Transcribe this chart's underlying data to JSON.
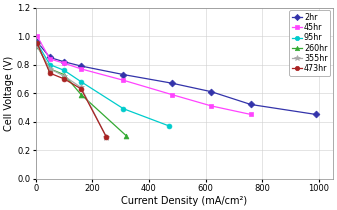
{
  "title": "",
  "xlabel": "Current Density (mA/cm²)",
  "ylabel": "Cell Voltage (V)",
  "xlim": [
    0,
    1050
  ],
  "ylim": [
    0,
    1.2
  ],
  "xticks": [
    0,
    200,
    400,
    600,
    800,
    1000
  ],
  "yticks": [
    0,
    0.2,
    0.4,
    0.6,
    0.8,
    1.0,
    1.2
  ],
  "series": [
    {
      "label": "2hr",
      "color": "#3333AA",
      "marker": "D",
      "markersize": 3.5,
      "linewidth": 0.9,
      "x": [
        5,
        50,
        100,
        160,
        310,
        480,
        620,
        760,
        990
      ],
      "y": [
        0.96,
        0.85,
        0.82,
        0.79,
        0.73,
        0.67,
        0.61,
        0.52,
        0.45
      ]
    },
    {
      "label": "45hr",
      "color": "#FF44FF",
      "marker": "s",
      "markersize": 3.5,
      "linewidth": 0.9,
      "x": [
        5,
        50,
        100,
        160,
        310,
        480,
        620,
        760
      ],
      "y": [
        1.0,
        0.84,
        0.81,
        0.77,
        0.69,
        0.59,
        0.51,
        0.45
      ]
    },
    {
      "label": "95hr",
      "color": "#00CCCC",
      "marker": "o",
      "markersize": 3.5,
      "linewidth": 0.9,
      "x": [
        5,
        50,
        100,
        160,
        310,
        470
      ],
      "y": [
        0.95,
        0.8,
        0.76,
        0.68,
        0.49,
        0.37
      ]
    },
    {
      "label": "260hr",
      "color": "#33AA33",
      "marker": "^",
      "markersize": 3.5,
      "linewidth": 0.9,
      "x": [
        5,
        50,
        100,
        160,
        320
      ],
      "y": [
        0.93,
        0.77,
        0.73,
        0.59,
        0.3
      ]
    },
    {
      "label": "355hr",
      "color": "#AAAAAA",
      "marker": "*",
      "markersize": 4.5,
      "linewidth": 0.9,
      "x": [
        5,
        50,
        100,
        160,
        250
      ],
      "y": [
        0.93,
        0.77,
        0.72,
        0.64,
        0.29
      ]
    },
    {
      "label": "473hr",
      "color": "#AA2222",
      "marker": "o",
      "markersize": 3.5,
      "linewidth": 0.9,
      "x": [
        5,
        50,
        100,
        160,
        250
      ],
      "y": [
        0.95,
        0.74,
        0.7,
        0.63,
        0.29
      ]
    }
  ],
  "legend_fontsize": 5.8,
  "axis_fontsize": 7,
  "tick_fontsize": 6,
  "background_color": "#ffffff",
  "grid": true
}
